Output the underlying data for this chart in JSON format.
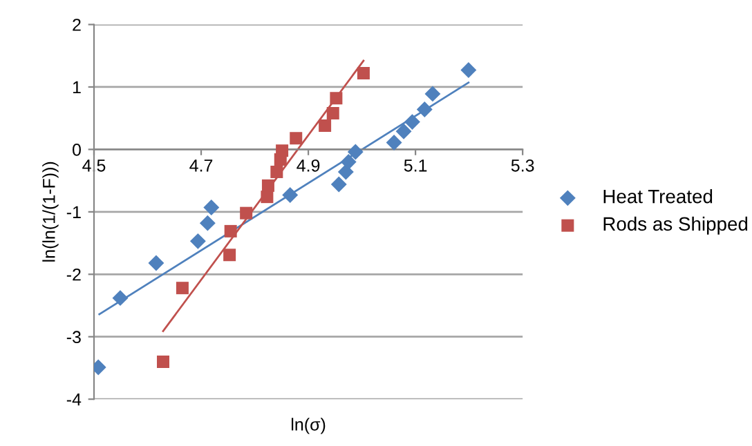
{
  "chart_data": {
    "type": "scatter",
    "xlabel": "ln(σ)",
    "ylabel": "ln(ln(1/(1-F)))",
    "xlim": [
      4.5,
      5.3
    ],
    "ylim": [
      -4,
      2
    ],
    "xticks": [
      4.5,
      4.7,
      4.9,
      5.1,
      5.3
    ],
    "yticks": [
      -4,
      -3,
      -2,
      -1,
      0,
      1,
      2
    ],
    "grid": "y",
    "legend": "right",
    "series": [
      {
        "name": "Heat Treated",
        "color": "#4f81bd",
        "marker": "diamond",
        "x": [
          4.508,
          4.549,
          4.616,
          4.694,
          4.712,
          4.719,
          4.866,
          4.957,
          4.97,
          4.975,
          4.988,
          5.06,
          5.078,
          5.094,
          5.117,
          5.132,
          5.199
        ],
        "values": [
          -3.49,
          -2.38,
          -1.82,
          -1.47,
          -1.18,
          -0.93,
          -0.73,
          -0.56,
          -0.36,
          -0.2,
          -0.04,
          0.11,
          0.29,
          0.44,
          0.64,
          0.89,
          1.27
        ]
      },
      {
        "name": "Rods as Shipped",
        "color": "#c0504d",
        "marker": "square",
        "x": [
          4.629,
          4.665,
          4.753,
          4.755,
          4.784,
          4.823,
          4.825,
          4.841,
          4.848,
          4.851,
          4.877,
          4.931,
          4.946,
          4.952,
          5.003
        ],
        "values": [
          -3.4,
          -2.22,
          -1.69,
          -1.31,
          -1.02,
          -0.76,
          -0.58,
          -0.36,
          -0.16,
          -0.02,
          0.18,
          0.38,
          0.58,
          0.82,
          1.22
        ]
      },
      {
        "type": "line",
        "color": "#4f81bd",
        "x": [
          4.51,
          5.199
        ],
        "values": [
          -2.64,
          1.07
        ]
      },
      {
        "type": "line",
        "color": "#c0504d",
        "x": [
          4.629,
          5.003
        ],
        "values": [
          -2.91,
          1.42
        ]
      }
    ]
  }
}
